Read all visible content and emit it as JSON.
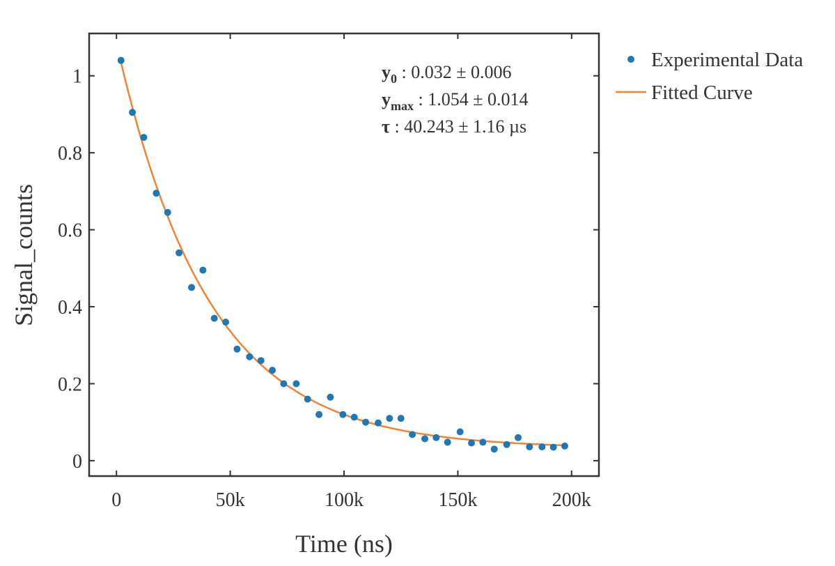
{
  "chart_data": {
    "type": "scatter",
    "xlabel": "Time (ns)",
    "ylabel": "Signal_counts",
    "xlim": [
      -12000,
      212000
    ],
    "ylim": [
      -0.04,
      1.11
    ],
    "x_ticks": [
      0,
      50000,
      100000,
      150000,
      200000
    ],
    "x_tick_labels": [
      "0",
      "50k",
      "100k",
      "150k",
      "200k"
    ],
    "y_ticks": [
      0,
      0.2,
      0.4,
      0.6,
      0.8,
      1
    ],
    "y_tick_labels": [
      "0",
      "0.2",
      "0.4",
      "0.6",
      "0.8",
      "1"
    ],
    "grid": false,
    "legend_position": "outside-right",
    "series": [
      {
        "name": "Experimental Data",
        "kind": "scatter",
        "color": "#1f77b4",
        "x": [
          2000,
          7000,
          12000,
          17500,
          22500,
          27500,
          33000,
          38000,
          43000,
          48000,
          53000,
          58500,
          63500,
          68500,
          73500,
          79000,
          84000,
          89000,
          94000,
          99500,
          104500,
          109500,
          115000,
          120000,
          125000,
          130000,
          135500,
          140500,
          145500,
          151000,
          156000,
          161000,
          166000,
          171500,
          176500,
          181500,
          187000,
          192000,
          197000
        ],
        "y": [
          1.04,
          0.905,
          0.84,
          0.695,
          0.645,
          0.54,
          0.45,
          0.495,
          0.37,
          0.36,
          0.29,
          0.27,
          0.26,
          0.235,
          0.2,
          0.2,
          0.16,
          0.12,
          0.165,
          0.12,
          0.113,
          0.1,
          0.098,
          0.11,
          0.11,
          0.068,
          0.057,
          0.06,
          0.048,
          0.075,
          0.046,
          0.048,
          0.03,
          0.042,
          0.06,
          0.036,
          0.036,
          0.035,
          0.038
        ]
      },
      {
        "name": "Fitted Curve",
        "kind": "line",
        "color": "#f58231",
        "model": "exponential_decay"
      }
    ],
    "fit": {
      "y0": 0.032,
      "ymax": 1.054,
      "tau_us": 40.243
    },
    "annotations": [
      {
        "symbol": "y",
        "subscript": "0",
        "text": " : 0.032 ± 0.006"
      },
      {
        "symbol": "y",
        "subscript": "max",
        "text": " : 1.054 ± 0.014"
      },
      {
        "symbol": "τ",
        "subscript": "",
        "text": " : 40.243 ± 1.16 µs"
      }
    ]
  }
}
